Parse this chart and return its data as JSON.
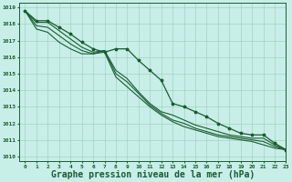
{
  "background_color": "#c8eee8",
  "grid_color": "#99ccbb",
  "line_color": "#1a5c30",
  "xlabel": "Graphe pression niveau de la mer (hPa)",
  "xlabel_fontsize": 7,
  "ylabel_ticks": [
    1010,
    1011,
    1012,
    1013,
    1014,
    1015,
    1016,
    1017,
    1018,
    1019
  ],
  "xlim": [
    -0.5,
    23
  ],
  "ylim": [
    1009.7,
    1019.3
  ],
  "hours": [
    0,
    1,
    2,
    3,
    4,
    5,
    6,
    7,
    8,
    9,
    10,
    11,
    12,
    13,
    14,
    15,
    16,
    17,
    18,
    19,
    20,
    21,
    22,
    23
  ],
  "series": [
    [
      1018.8,
      1018.2,
      1018.2,
      1017.8,
      1017.4,
      1016.9,
      1016.5,
      1016.3,
      1016.5,
      1016.5,
      1015.8,
      1015.2,
      1014.6,
      1013.2,
      1013.0,
      1012.7,
      1012.4,
      1012.0,
      1011.7,
      1011.4,
      1011.3,
      1011.3,
      1010.8,
      1010.4
    ],
    [
      1018.8,
      1018.1,
      1018.1,
      1017.6,
      1017.1,
      1016.6,
      1016.3,
      1016.4,
      1015.2,
      1014.7,
      1013.9,
      1013.2,
      1012.7,
      1012.5,
      1012.2,
      1011.9,
      1011.7,
      1011.5,
      1011.3,
      1011.2,
      1011.1,
      1011.1,
      1010.7,
      1010.4
    ],
    [
      1018.8,
      1017.9,
      1017.8,
      1017.3,
      1016.8,
      1016.4,
      1016.2,
      1016.4,
      1015.0,
      1014.5,
      1013.8,
      1013.1,
      1012.6,
      1012.2,
      1012.0,
      1011.7,
      1011.5,
      1011.3,
      1011.2,
      1011.1,
      1011.0,
      1010.9,
      1010.6,
      1010.4
    ],
    [
      1018.8,
      1017.7,
      1017.5,
      1016.9,
      1016.5,
      1016.2,
      1016.2,
      1016.3,
      1014.8,
      1014.2,
      1013.6,
      1013.0,
      1012.5,
      1012.1,
      1011.8,
      1011.6,
      1011.4,
      1011.2,
      1011.1,
      1011.0,
      1010.9,
      1010.7,
      1010.5,
      1010.4
    ]
  ],
  "marked_series": [
    0
  ],
  "marker": "*",
  "marker_size": 2.5,
  "linewidth_main": 0.9,
  "linewidth_other": 0.8
}
